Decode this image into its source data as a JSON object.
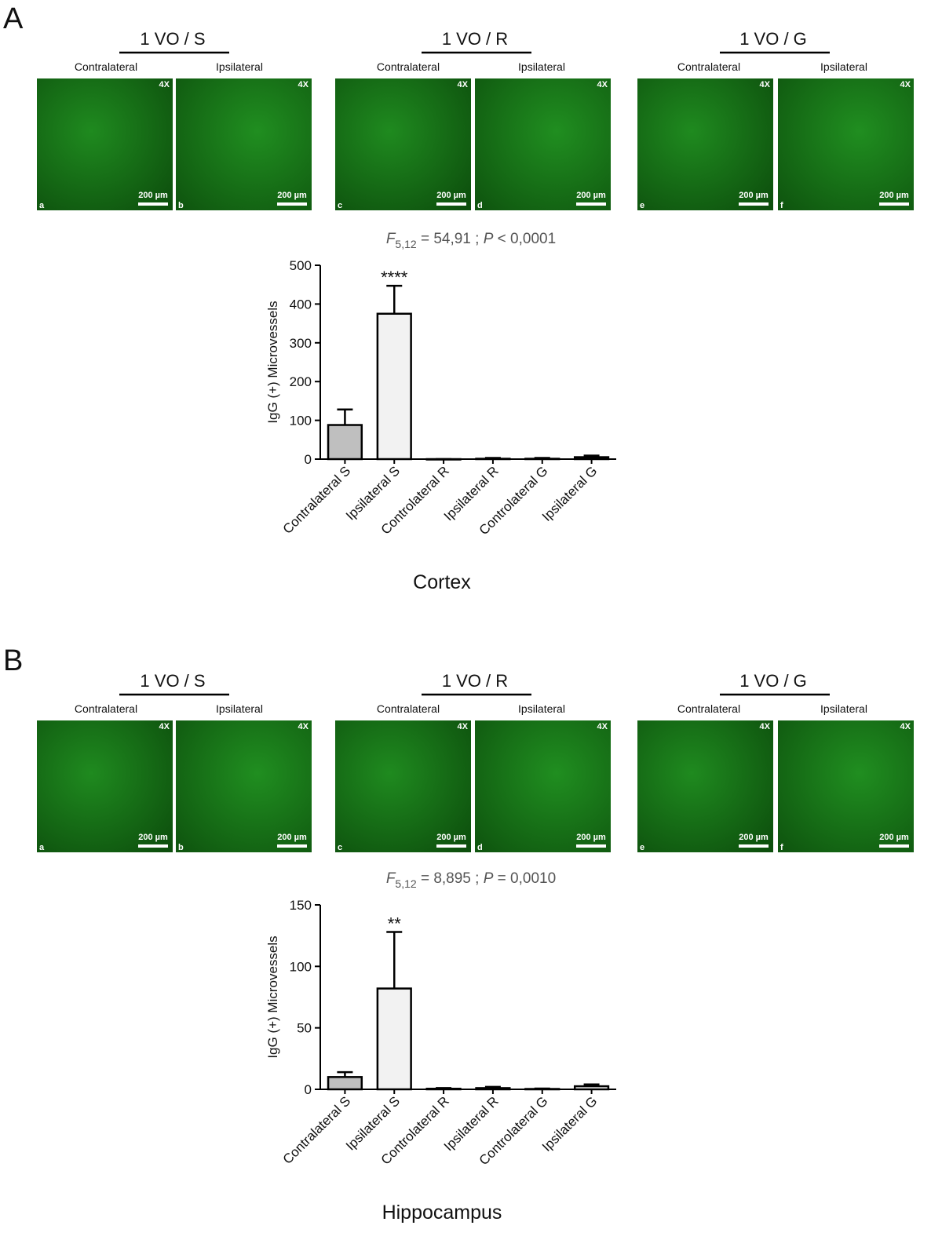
{
  "figure": {
    "panels": [
      {
        "letter": "A",
        "groups": [
          {
            "title": "1 VO / S",
            "sides": [
              "Contralateral",
              "Ipsilateral"
            ],
            "images": [
              {
                "id": "a",
                "mag": "4X",
                "scale": "200 µm"
              },
              {
                "id": "b",
                "mag": "4X",
                "scale": "200 µm"
              }
            ]
          },
          {
            "title": "1 VO / R",
            "sides": [
              "Contralateral",
              "Ipsilateral"
            ],
            "images": [
              {
                "id": "c",
                "mag": "4X",
                "scale": "200 µm"
              },
              {
                "id": "d",
                "mag": "4X",
                "scale": "200 µm"
              }
            ]
          },
          {
            "title": "1 VO / G",
            "sides": [
              "Contralateral",
              "Ipsilateral"
            ],
            "images": [
              {
                "id": "e",
                "mag": "4X",
                "scale": "200 µm"
              },
              {
                "id": "f",
                "mag": "4X",
                "scale": "200 µm"
              }
            ]
          }
        ]
      },
      {
        "letter": "B",
        "groups": [
          {
            "title": "1 VO / S",
            "sides": [
              "Contralateral",
              "Ipsilateral"
            ],
            "images": [
              {
                "id": "a",
                "mag": "4X",
                "scale": "200 µm"
              },
              {
                "id": "b",
                "mag": "4X",
                "scale": "200 µm"
              }
            ]
          },
          {
            "title": "1 VO / R",
            "sides": [
              "Contralateral",
              "Ipsilateral"
            ],
            "images": [
              {
                "id": "c",
                "mag": "4X",
                "scale": "200 µm"
              },
              {
                "id": "d",
                "mag": "4X",
                "scale": "200 µm"
              }
            ]
          },
          {
            "title": "1 VO / G",
            "sides": [
              "Contralateral",
              "Ipsilateral"
            ],
            "images": [
              {
                "id": "e",
                "mag": "4X",
                "scale": "200 µm"
              },
              {
                "id": "f",
                "mag": "4X",
                "scale": "200 µm"
              }
            ]
          }
        ]
      }
    ]
  },
  "chart_data": [
    {
      "type": "bar",
      "stat": [
        "F",
        "5,12",
        " = 54,91 ; ",
        "P",
        " < 0,0001"
      ],
      "ylabel": "IgG (+) Microvessels",
      "xlabel": "Cortex",
      "categories": [
        "Contralateral S",
        "Ipsilateral S",
        "Controlateral R",
        "Ipsilateral R",
        "Controlateral G",
        "Ipsilateral G"
      ],
      "values": [
        88,
        375,
        0,
        1,
        1,
        5
      ],
      "errors": [
        40,
        72,
        0,
        2,
        2,
        4
      ],
      "colors": [
        "#bfbfbf",
        "#f2f2f2",
        "#ffffff",
        "#ffffff",
        "#ffffff",
        "#ffffff"
      ],
      "annotations": [
        {
          "category": "Ipsilateral S",
          "text": "****"
        }
      ],
      "ylim": [
        0,
        500
      ],
      "yticks": [
        0,
        100,
        200,
        300,
        400,
        500
      ]
    },
    {
      "type": "bar",
      "stat": [
        "F",
        "5,12",
        " = 8,895 ; ",
        "P",
        " = 0,0010"
      ],
      "ylabel": "IgG (+) Microvessels",
      "xlabel": "Hippocampus",
      "categories": [
        "Contralateral S",
        "Ipsilateral S",
        "Controlateral R",
        "Ipsilateral R",
        "Controlateral G",
        "Ipsilateral G"
      ],
      "values": [
        10,
        82,
        0.5,
        1,
        0.3,
        2.5
      ],
      "errors": [
        4,
        46,
        0.5,
        1,
        0.3,
        1.5
      ],
      "colors": [
        "#bfbfbf",
        "#f2f2f2",
        "#ffffff",
        "#ffffff",
        "#ffffff",
        "#ffffff"
      ],
      "annotations": [
        {
          "category": "Ipsilateral S",
          "text": "**"
        }
      ],
      "ylim": [
        0,
        150
      ],
      "yticks": [
        0,
        50,
        100,
        150
      ]
    }
  ]
}
